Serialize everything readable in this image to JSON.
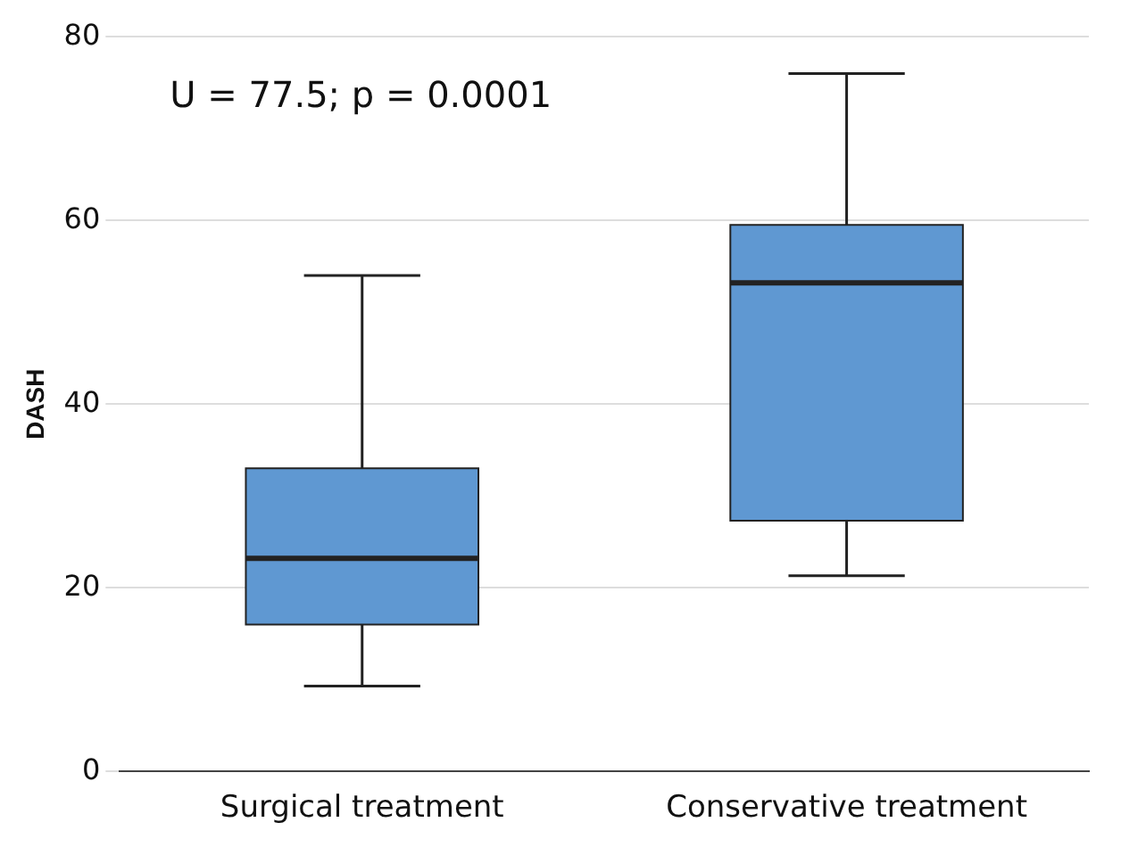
{
  "chart_data": {
    "type": "box",
    "ylabel": "DASH",
    "categories": [
      "Surgical treatment",
      "Conservative treatment"
    ],
    "color": "#5f98d2",
    "boxes": [
      {
        "low": 9.3,
        "q1": 16,
        "median": 23.2,
        "q3": 33,
        "high": 54
      },
      {
        "low": 21.3,
        "q1": 27.3,
        "median": 53.2,
        "q3": 59.5,
        "high": 76
      }
    ],
    "ylim": [
      0,
      80
    ],
    "yticks": [
      0,
      20,
      40,
      60,
      80
    ],
    "grid": "y",
    "annotations": [
      "U = 77.5; p = 0.0001"
    ]
  }
}
